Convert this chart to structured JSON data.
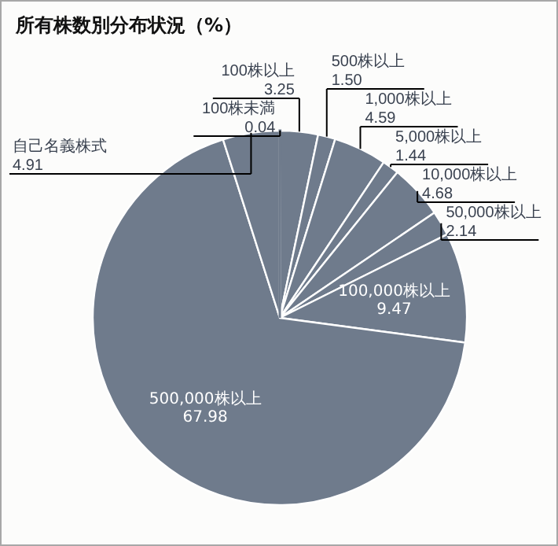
{
  "chart_data": {
    "type": "pie",
    "title": "所有株数別分布状況（%）",
    "categories": [
      "100株未満",
      "100株以上",
      "500株以上",
      "1,000株以上",
      "5,000株以上",
      "10,000株以上",
      "50,000株以上",
      "100,000株以上",
      "500,000株以上",
      "自己名義株式"
    ],
    "values": [
      0.04,
      3.25,
      1.5,
      4.59,
      1.44,
      4.68,
      2.14,
      9.47,
      67.98,
      4.91
    ],
    "value_labels": [
      "0.04",
      "3.25",
      "1.50",
      "4.59",
      "1.44",
      "4.68",
      "2.14",
      "9.47",
      "67.98",
      "4.91"
    ],
    "colors": [
      "#6f7b8c",
      "#6f7b8c",
      "#6f7b8c",
      "#6f7b8c",
      "#6f7b8c",
      "#6f7b8c",
      "#6f7b8c",
      "#6f7b8c",
      "#6f7b8c",
      "#6f7b8c"
    ],
    "legend": false
  }
}
